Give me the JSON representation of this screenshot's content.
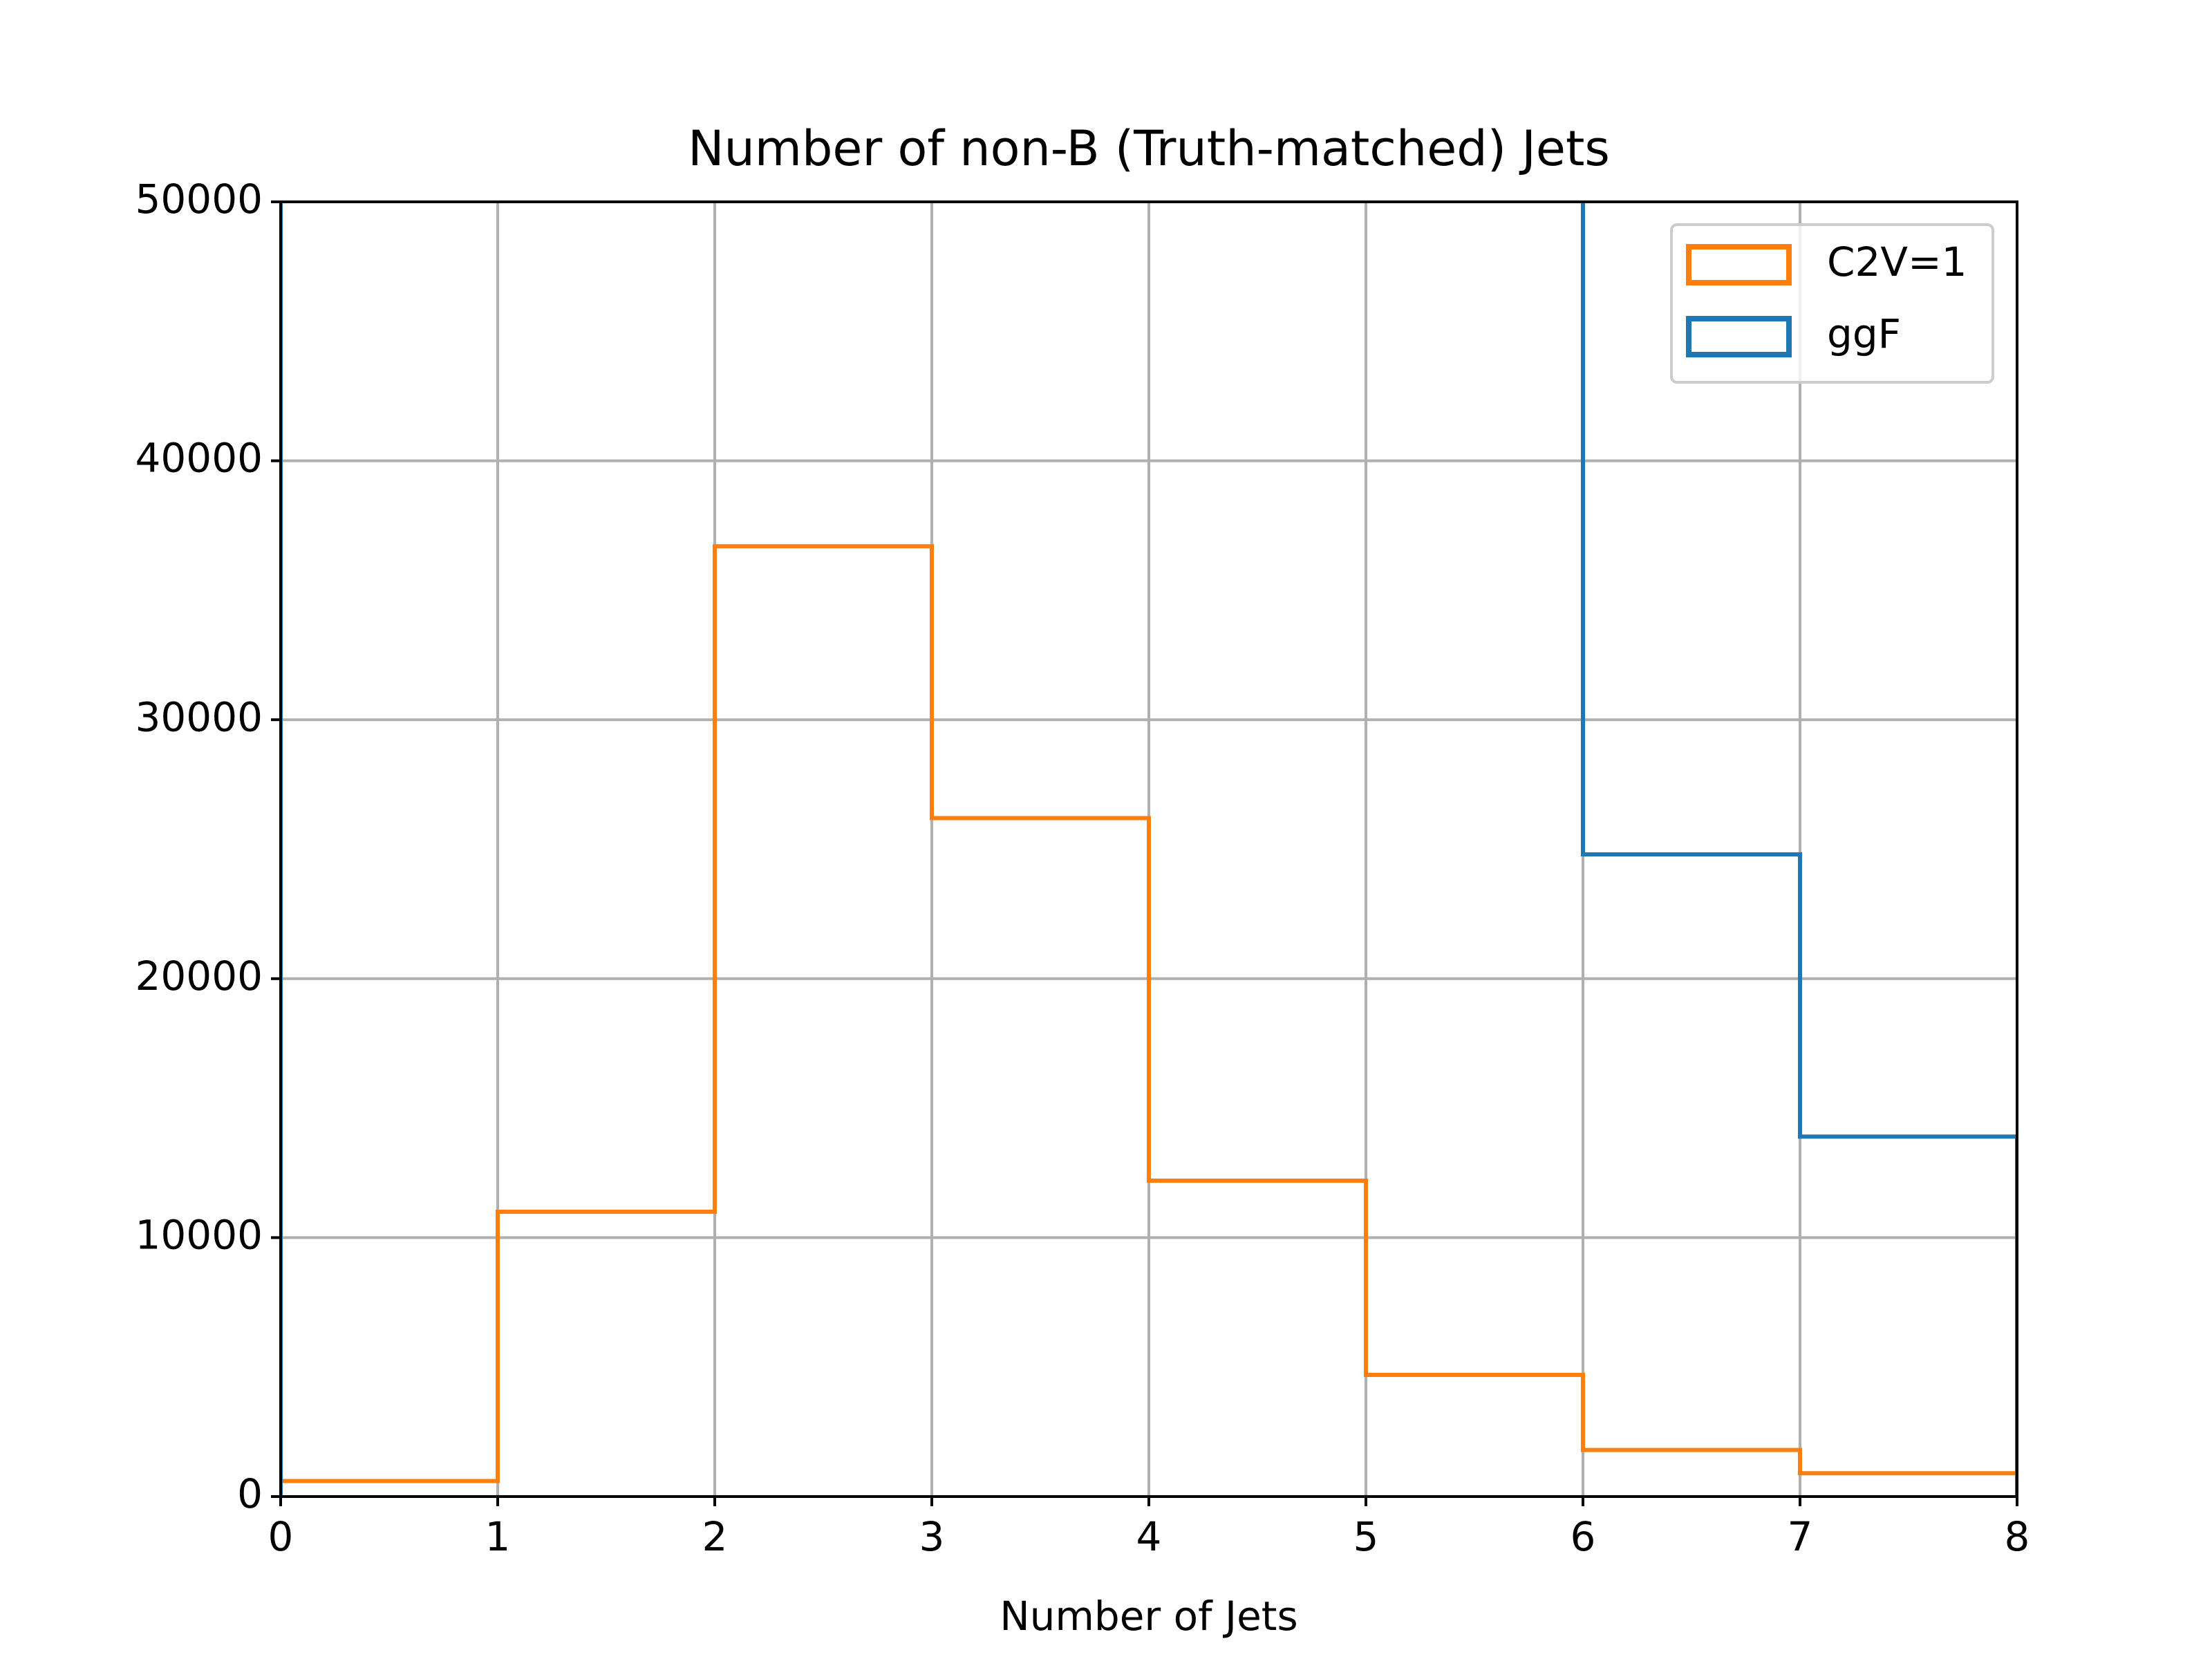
{
  "chart_data": {
    "type": "histogram",
    "title": "Number of non-B (Truth-matched) Jets",
    "xlabel": "Number of Jets",
    "bins": [
      0,
      1,
      2,
      3,
      4,
      5,
      6,
      7,
      8
    ],
    "series": [
      {
        "name": "C2V=1",
        "color": "#ff7f0e",
        "values": [
          600,
          11000,
          36700,
          26200,
          12200,
          4700,
          1800,
          900
        ]
      },
      {
        "name": "ggF",
        "color": "#1f77b4",
        "values": [
          null,
          null,
          null,
          null,
          null,
          null,
          24800,
          13900
        ]
      }
    ],
    "xlim": [
      0,
      8
    ],
    "xticks": [
      0,
      1,
      2,
      3,
      4,
      5,
      6,
      7,
      8
    ],
    "ylim": [
      0,
      50000
    ],
    "yticks": [
      0,
      10000,
      20000,
      30000,
      40000,
      50000
    ],
    "grid": true,
    "legend": "upper right"
  }
}
